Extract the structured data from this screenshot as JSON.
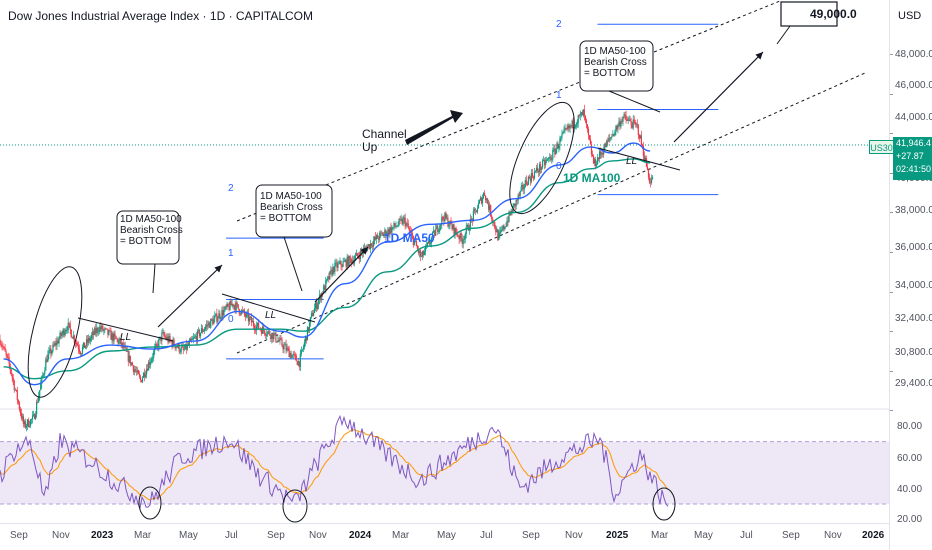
{
  "title": "Dow Jones Industrial Average Index · 1D · CAPITALCOM",
  "currency": "USD",
  "price_tag": {
    "symbol": "US30",
    "price": "41,946.4",
    "change": "+27.87",
    "countdown": "02:41:50"
  },
  "colors": {
    "ma50": "#2962ff",
    "ma100": "#089981",
    "rsi": "#7e57c2",
    "rsi_ma": "#ff9800",
    "rsi_band": "#ede7f6",
    "fib": "#2962ff",
    "up": "#089981",
    "down": "#f23645"
  },
  "chart_data": [
    {
      "type": "candlestick",
      "title": "Dow Jones Industrial Average Index · 1D · CAPITALCOM",
      "ylabel": "USD",
      "ylim": [
        27000,
        51500
      ],
      "y_ticks": [
        "48,000.0",
        "46,000.0",
        "44,000.0",
        "42,000.0",
        "40,000.0",
        "38,000.0",
        "36,000.0",
        "34,000.0",
        "32,400.0",
        "30,800.0",
        "29,400.0"
      ],
      "x_ticks": [
        "Sep",
        "Nov",
        "2023",
        "Mar",
        "May",
        "Jul",
        "Sep",
        "Nov",
        "2024",
        "Mar",
        "May",
        "Jul",
        "Sep",
        "Nov",
        "2025",
        "Mar",
        "May",
        "Jul",
        "Sep",
        "Nov",
        "2026"
      ],
      "bold_x_ticks": [
        "2023",
        "2024",
        "2025",
        "2026"
      ],
      "series": [
        {
          "name": "1D MA50",
          "x": [
            "2022-09-01",
            "2022-10-15",
            "2022-12-01",
            "2023-02-01",
            "2023-04-01",
            "2023-06-01",
            "2023-08-01",
            "2023-10-01",
            "2023-11-01",
            "2024-01-01",
            "2024-03-01",
            "2024-05-01",
            "2024-07-01",
            "2024-09-01",
            "2024-11-01",
            "2024-12-15",
            "2025-01-15",
            "2025-02-15",
            "2025-03-10"
          ],
          "values": [
            32600,
            31300,
            32600,
            33300,
            33100,
            33500,
            35000,
            34000,
            33700,
            36400,
            38500,
            39400,
            39600,
            40700,
            42400,
            43300,
            43000,
            43500,
            43100
          ]
        },
        {
          "name": "1D MA100",
          "x": [
            "2022-09-01",
            "2022-10-15",
            "2022-12-01",
            "2023-02-01",
            "2023-04-01",
            "2023-06-01",
            "2023-08-01",
            "2023-10-01",
            "2023-11-01",
            "2024-01-01",
            "2024-03-01",
            "2024-05-01",
            "2024-07-01",
            "2024-09-01",
            "2024-11-01",
            "2024-12-15",
            "2025-01-15",
            "2025-02-15",
            "2025-03-10"
          ],
          "values": [
            32200,
            31600,
            32000,
            33000,
            33200,
            33300,
            34100,
            34100,
            34000,
            35200,
            37000,
            38300,
            39200,
            40000,
            41500,
            42200,
            42600,
            42700,
            42500
          ]
        }
      ],
      "fib_levels": [
        {
          "label": "2",
          "value": 38700
        },
        {
          "label": "1",
          "value": 35600
        },
        {
          "label": "0",
          "value": 32600
        },
        {
          "label": "2",
          "value": 49500
        },
        {
          "label": "1",
          "value": 45200
        },
        {
          "label": "0",
          "value": 40900
        }
      ],
      "annotations": [
        {
          "text": "1D MA50-100\nBearish Cross\n= BOTTOM"
        },
        {
          "text": "1D MA50-100\nBearish Cross\n= BOTTOM"
        },
        {
          "text": "1D MA50-100\nBearish Cross\n= BOTTOM"
        },
        {
          "text": "LL"
        },
        {
          "text": "LL"
        },
        {
          "text": "LL"
        },
        {
          "text": "Channel\nUp"
        },
        {
          "text": "49,000.0"
        },
        {
          "text": "1D MA50"
        },
        {
          "text": "1D MA100"
        }
      ]
    },
    {
      "type": "line",
      "title": "",
      "y_ticks": [
        "80.00",
        "60.00",
        "40.00",
        "20.00"
      ],
      "ylim": [
        16,
        92
      ],
      "band": [
        30,
        70
      ],
      "series": [
        {
          "name": "RSI"
        },
        {
          "name": "RSI MA"
        }
      ]
    }
  ],
  "labels": {
    "ann1": [
      "1D MA50-100",
      "Bearish Cross",
      "= BOTTOM"
    ],
    "ann2": [
      "1D MA50-100",
      "Bearish Cross",
      "= BOTTOM"
    ],
    "ann3": [
      "1D MA50-100",
      "Bearish Cross",
      "= BOTTOM"
    ],
    "ll": "LL",
    "channel": [
      "Channel",
      "Up"
    ],
    "target": "49,000.0",
    "ma50": "1D MA50",
    "ma100": "1D MA100",
    "fib2": "2",
    "fib1": "1",
    "fib0": "0"
  }
}
